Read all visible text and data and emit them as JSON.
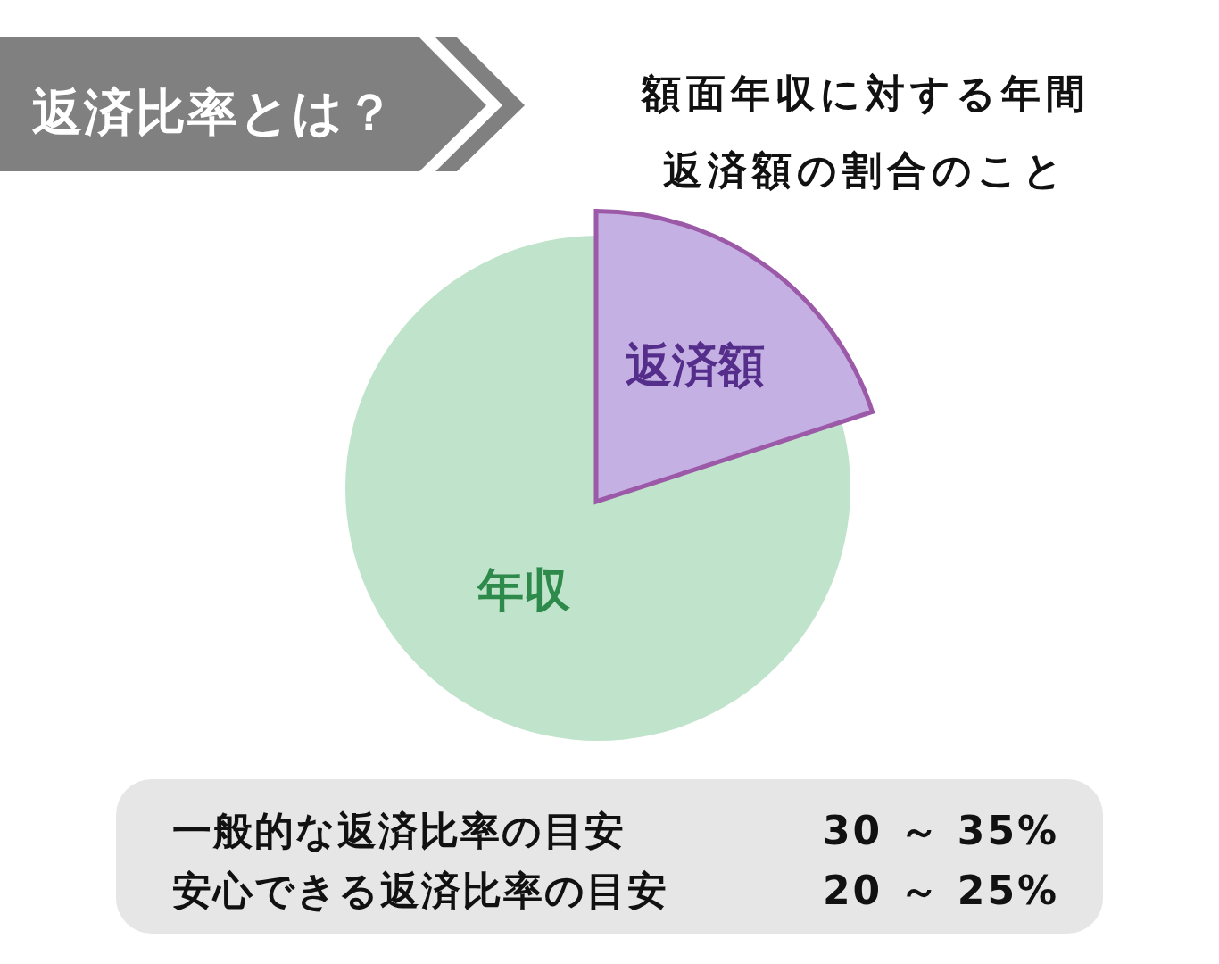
{
  "chart_data": {
    "type": "pie",
    "title": "返済比率とは？",
    "subtitle": "額面年収に対する年間返済額の割合のこと",
    "categories": [
      "返済額",
      "年収"
    ],
    "values": [
      20,
      80
    ],
    "colors": [
      "#c5b0e3",
      "#c0e3cb"
    ],
    "annotations": [
      "一般的な返済比率の目安",
      "30 ～ 35%",
      "安心できる返済比率の目安",
      "20 ～ 25%"
    ]
  }
}
